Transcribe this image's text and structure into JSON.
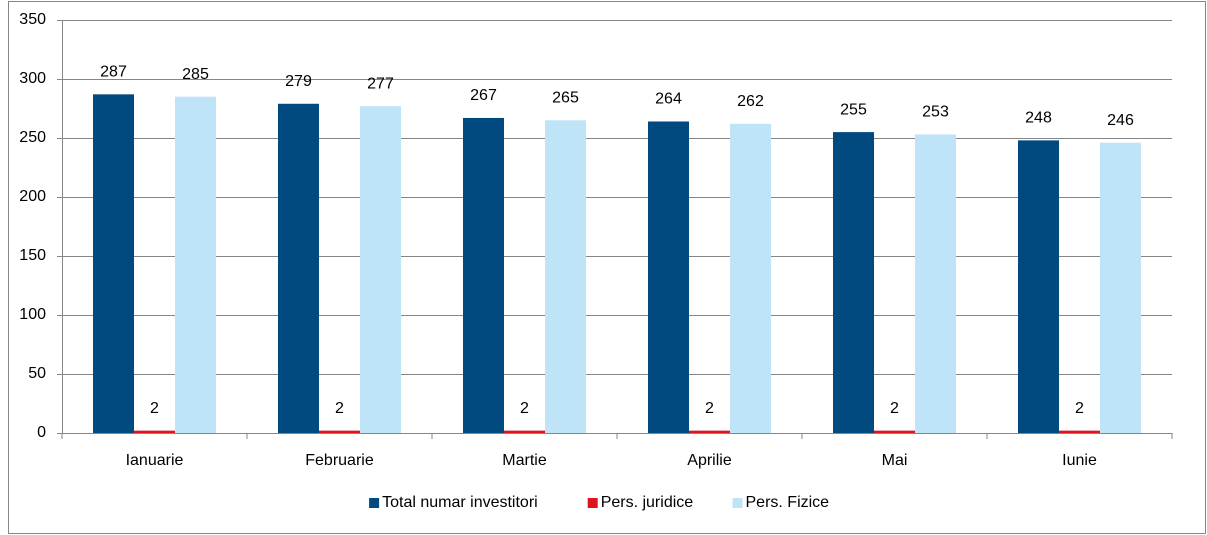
{
  "chart_data": {
    "type": "bar",
    "categories": [
      "Ianuarie",
      "Februarie",
      "Martie",
      "Aprilie",
      "Mai",
      "Iunie"
    ],
    "series": [
      {
        "name": "Total numar investitori",
        "color": "#004a7f",
        "values": [
          287,
          279,
          267,
          264,
          255,
          248
        ]
      },
      {
        "name": "Pers. juridice",
        "color": "#e0141e",
        "values": [
          2,
          2,
          2,
          2,
          2,
          2
        ]
      },
      {
        "name": "Pers. Fizice",
        "color": "#bfe3f7",
        "values": [
          285,
          277,
          265,
          262,
          253,
          246
        ]
      }
    ],
    "ylim": [
      0,
      350
    ],
    "yticks": [
      0,
      50,
      100,
      150,
      200,
      250,
      300,
      350
    ],
    "grid": true,
    "legend": "bottom"
  }
}
